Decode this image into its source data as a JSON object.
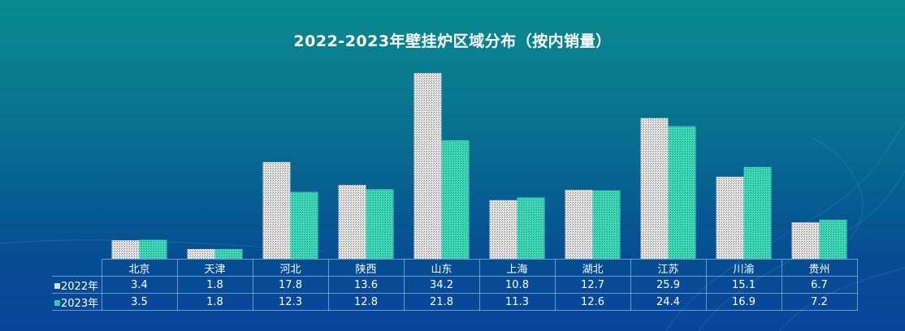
{
  "chart_data": {
    "type": "bar",
    "title": "2022-2023年壁挂炉区域分布（按内销量）",
    "categories": [
      "北京",
      "天津",
      "河北",
      "陕西",
      "山东",
      "上海",
      "湖北",
      "江苏",
      "川渝",
      "贵州"
    ],
    "series": [
      {
        "name": "2022年",
        "values": [
          3.4,
          1.8,
          17.8,
          13.6,
          34.2,
          10.8,
          12.7,
          25.9,
          15.1,
          6.7
        ],
        "value_labels": [
          "3.4",
          "1.8",
          "17.8",
          "13.6",
          "34.2",
          "10.8",
          "12.7",
          "25.9",
          "15.1",
          "6.7"
        ],
        "color": "#d9d9d9"
      },
      {
        "name": "2023年",
        "values": [
          3.5,
          1.8,
          12.3,
          12.8,
          21.8,
          11.3,
          12.6,
          24.4,
          16.9,
          7.2
        ],
        "value_labels": [
          "3.5",
          "1.8",
          "12.3",
          "12.8",
          "21.8",
          "11.3",
          "12.6",
          "24.4",
          "16.9",
          "7.2"
        ],
        "color": "#3fd4b4"
      }
    ],
    "ylim": [
      0,
      34.5
    ],
    "grid": false,
    "legend": "data-table"
  }
}
